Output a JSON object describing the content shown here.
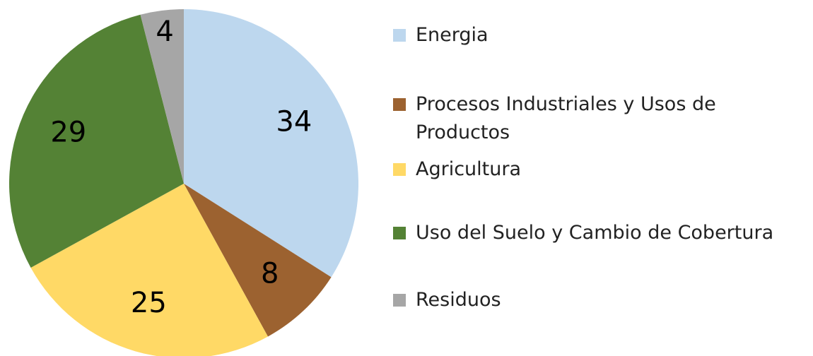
{
  "chart_data": {
    "type": "pie",
    "categories": [
      "Energia",
      "Procesos Industriales y Usos de Productos",
      "Agricultura",
      "Uso del Suelo y Cambio de Cobertura",
      "Residuos"
    ],
    "values": [
      34,
      8,
      25,
      29,
      4
    ],
    "colors": [
      "#bdd7ee",
      "#9c6230",
      "#ffd966",
      "#548235",
      "#a6a6a6"
    ],
    "legend": "right"
  }
}
